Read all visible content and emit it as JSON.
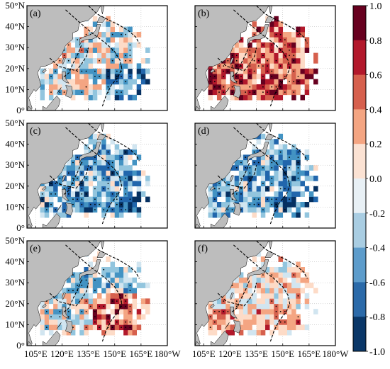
{
  "figure": {
    "panels": [
      {
        "label": "(a)",
        "map_type": "anomaly",
        "tone": "mixed"
      },
      {
        "label": "(b)",
        "map_type": "anomaly",
        "tone": "positive"
      },
      {
        "label": "(c)",
        "map_type": "anomaly",
        "tone": "negative"
      },
      {
        "label": "(d)",
        "map_type": "anomaly",
        "tone": "negative"
      },
      {
        "label": "(e)",
        "map_type": "anomaly",
        "tone": "mixed-positive-south"
      },
      {
        "label": "(f)",
        "map_type": "anomaly",
        "tone": "weak-positive"
      }
    ],
    "lat_ticks": [
      "0°",
      "10°N",
      "20°N",
      "30°N",
      "40°N",
      "50°N"
    ],
    "lon_ticks": [
      "105°E",
      "120°E",
      "135°E",
      "150°E",
      "165°E",
      "180°W"
    ],
    "colorbar": {
      "ticks": [
        "1.0",
        "0.8",
        "0.6",
        "0.4",
        "0.2",
        "0.0",
        "-0.2",
        "-0.4",
        "-0.6",
        "-0.8",
        "-1.0"
      ],
      "colors": [
        "#67001f",
        "#b2182b",
        "#d6604d",
        "#f4a582",
        "#fddbc7",
        "#f7f7f7",
        "#d1e5f0",
        "#92c5de",
        "#4393c3",
        "#2166ac",
        "#053061"
      ],
      "range": [
        -1.0,
        1.0
      ]
    },
    "land_color": "#bdbdbd",
    "dashed_line_color": "#000000"
  }
}
